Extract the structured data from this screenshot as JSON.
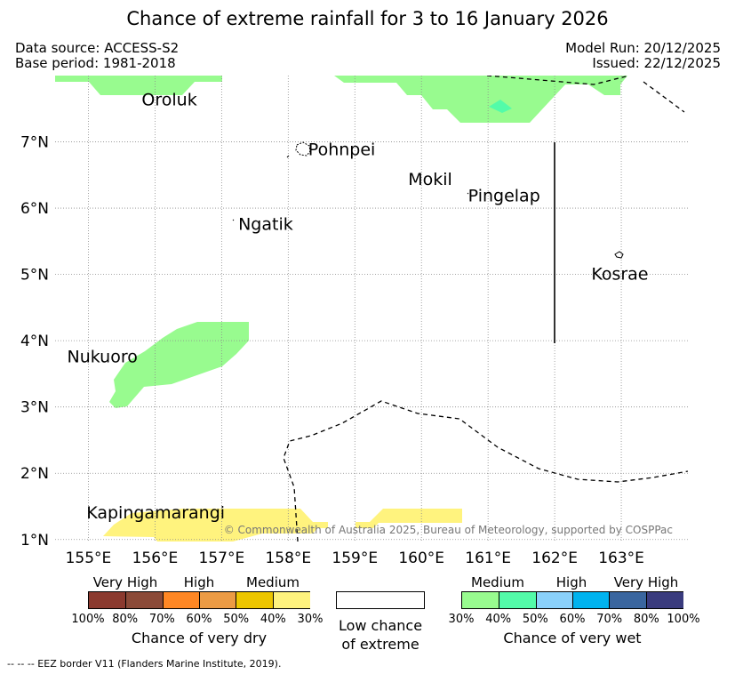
{
  "header": {
    "title": "Chance of extreme rainfall for 3 to 16 January 2026",
    "data_source": "Data source: ACCESS-S2",
    "base_period": "Base period: 1981-2018",
    "model_run": "Model Run: 20/12/2025",
    "issued": "Issued: 22/12/2025"
  },
  "map": {
    "lon_range": [
      154.5,
      164.0
    ],
    "lat_range": [
      0.97,
      8.0
    ],
    "lon_ticks": [
      {
        "value": 155,
        "label": "155°E"
      },
      {
        "value": 156,
        "label": "156°E"
      },
      {
        "value": 157,
        "label": "157°E"
      },
      {
        "value": 158,
        "label": "158°E"
      },
      {
        "value": 159,
        "label": "159°E"
      },
      {
        "value": 160,
        "label": "160°E"
      },
      {
        "value": 161,
        "label": "161°E"
      },
      {
        "value": 162,
        "label": "162°E"
      },
      {
        "value": 163,
        "label": "163°E"
      }
    ],
    "lat_ticks": [
      {
        "value": 1,
        "label": "1°N"
      },
      {
        "value": 2,
        "label": "2°N"
      },
      {
        "value": 3,
        "label": "3°N"
      },
      {
        "value": 4,
        "label": "4°N"
      },
      {
        "value": 5,
        "label": "5°N"
      },
      {
        "value": 6,
        "label": "6°N"
      },
      {
        "value": 7,
        "label": "7°N"
      }
    ],
    "places": [
      {
        "name": "Oroluk",
        "lon": 155.8,
        "lat": 7.55
      },
      {
        "name": "Pohnpei",
        "lon": 158.3,
        "lat": 6.8
      },
      {
        "name": "Mokil",
        "lon": 159.8,
        "lat": 6.35
      },
      {
        "name": "Pingelap",
        "lon": 160.7,
        "lat": 6.1
      },
      {
        "name": "Ngatik",
        "lon": 157.25,
        "lat": 5.67
      },
      {
        "name": "Kosrae",
        "lon": 162.55,
        "lat": 4.92
      },
      {
        "name": "Nukuoro",
        "lon": 154.68,
        "lat": 3.67
      },
      {
        "name": "Kapingamarangi",
        "lon": 154.97,
        "lat": 1.32
      }
    ],
    "copyright": "© Commonwealth of Australia 2025, Bureau of Meteorology, supported by COSPPac"
  },
  "legend": {
    "dry": {
      "categories": [
        "Very High",
        "High",
        "Medium"
      ],
      "colors": [
        "#8b3a2f",
        "#8b4a38",
        "#ff8724",
        "#ec9b44",
        "#edc600",
        "#fff37e"
      ],
      "percents": [
        "100%",
        "80%",
        "70%",
        "60%",
        "50%",
        "40%",
        "30%"
      ],
      "title": "Chance of very dry"
    },
    "low": {
      "title_line1": "Low chance",
      "title_line2": "of extreme"
    },
    "wet": {
      "categories": [
        "Medium",
        "High",
        "Very High"
      ],
      "colors": [
        "#98fb8f",
        "#53fba9",
        "#8ad1fb",
        "#00b3ef",
        "#3a669f",
        "#3a3b7e"
      ],
      "percents": [
        "30%",
        "40%",
        "50%",
        "60%",
        "70%",
        "80%",
        "100%"
      ],
      "title": "Chance of very wet"
    }
  },
  "footnote": "--  --  -- EEZ border V11 (Flanders Marine Institute, 2019).",
  "colors": {
    "wet_medium": "#98fb8f",
    "wet_medium_high": "#53fba9",
    "dry_medium": "#fff37e"
  }
}
